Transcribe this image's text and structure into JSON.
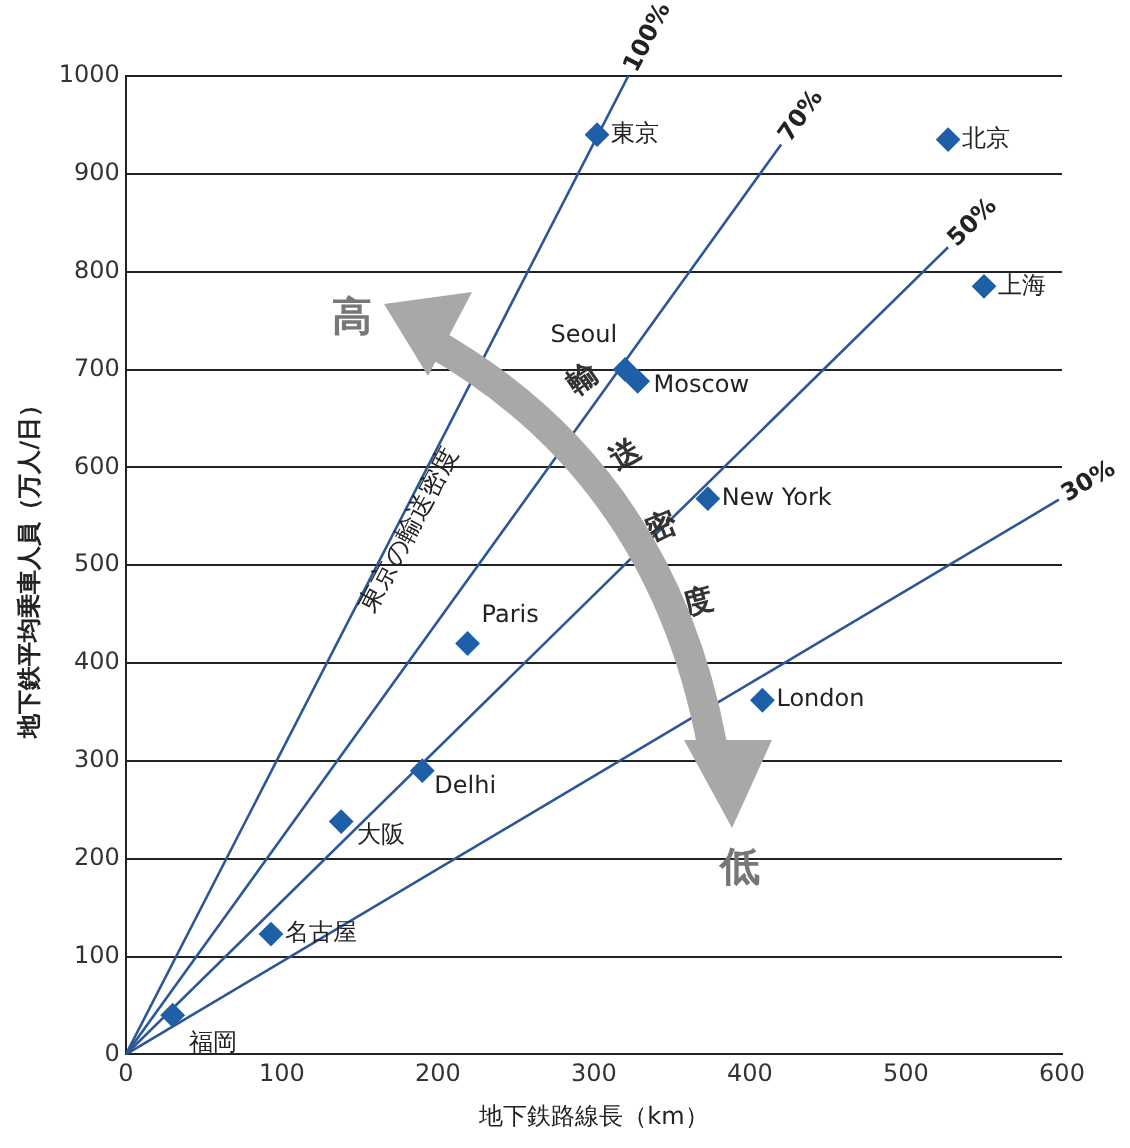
{
  "chart_data": {
    "type": "scatter",
    "xlabel": "地下鉄路線長（km）",
    "ylabel": "地下鉄平均乗車人員（万人/日）",
    "xlim": [
      0,
      600
    ],
    "xticks": [
      0,
      100,
      200,
      300,
      400,
      500,
      600
    ],
    "ylim": [
      0,
      1000
    ],
    "yticks": [
      0,
      100,
      200,
      300,
      400,
      500,
      600,
      700,
      800,
      900,
      1000
    ],
    "grid": "y",
    "legend": false,
    "marker": "diamond",
    "series": [
      {
        "type": "line",
        "name": "100%",
        "color": "#2b5797",
        "marker": "none",
        "x": [
          0,
          322
        ],
        "values": [
          0,
          1000
        ]
      },
      {
        "type": "line",
        "name": "70%",
        "color": "#2b5797",
        "marker": "none",
        "x": [
          0,
          420
        ],
        "values": [
          0,
          930
        ]
      },
      {
        "type": "line",
        "name": "50%",
        "color": "#2b5797",
        "marker": "none",
        "x": [
          0,
          527
        ],
        "values": [
          0,
          825
        ]
      },
      {
        "type": "line",
        "name": "30%",
        "color": "#2b5797",
        "marker": "none",
        "x": [
          0,
          598
        ],
        "values": [
          0,
          567
        ]
      },
      {
        "color": "#1f5fa8",
        "x": [
          302,
          527,
          550,
          320,
          328,
          373,
          219,
          408,
          190,
          138,
          93,
          30
        ],
        "values": [
          940,
          935,
          785,
          700,
          688,
          568,
          420,
          362,
          290,
          238,
          123,
          40
        ]
      }
    ],
    "annotations": [
      {
        "text": "東京",
        "x": 302,
        "y": 940
      },
      {
        "text": "北京",
        "x": 527,
        "y": 935
      },
      {
        "text": "上海",
        "x": 550,
        "y": 785
      },
      {
        "text": "Seoul",
        "x": 320,
        "y": 700
      },
      {
        "text": "Moscow",
        "x": 328,
        "y": 688
      },
      {
        "text": "New York",
        "x": 373,
        "y": 568
      },
      {
        "text": "Paris",
        "x": 219,
        "y": 420
      },
      {
        "text": "London",
        "x": 408,
        "y": 362
      },
      {
        "text": "Delhi",
        "x": 190,
        "y": 290
      },
      {
        "text": "大阪",
        "x": 138,
        "y": 238
      },
      {
        "text": "名古屋",
        "x": 93,
        "y": 123
      },
      {
        "text": "福岡",
        "x": 30,
        "y": 40
      },
      "高",
      "輸送密度",
      "低",
      "東京の輸送密度"
    ]
  }
}
